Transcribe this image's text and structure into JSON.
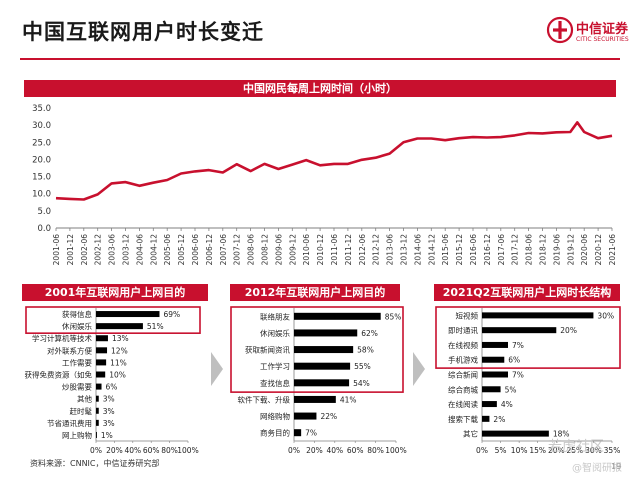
{
  "page": {
    "title": "中国互联网用户时长变迁",
    "source": "资料来源：CNNIC，中信证券研究部",
    "page_number": "19",
    "watermark": "若虎社区",
    "watermark_sub": "@智阅研报"
  },
  "logo": {
    "cn": "中信证券",
    "en": "CITIC SECURITIES",
    "icon": "citic-logo-icon"
  },
  "colors": {
    "accent": "#c8102e",
    "line": "#c8102e",
    "bar": "#000000",
    "arrow": "#bfbfbf"
  },
  "chart_data": [
    {
      "type": "line",
      "title": "中国网民每周上网时间（小时）",
      "x": [
        "2001-06",
        "2001-12",
        "2002-06",
        "2002-12",
        "2003-06",
        "2003-12",
        "2004-06",
        "2004-12",
        "2005-06",
        "2005-12",
        "2006-06",
        "2006-12",
        "2007-06",
        "2007-12",
        "2008-06",
        "2008-12",
        "2009-06",
        "2009-12",
        "2010-06",
        "2010-12",
        "2011-06",
        "2011-12",
        "2012-06",
        "2012-12",
        "2013-06",
        "2013-12",
        "2014-06",
        "2014-12",
        "2015-06",
        "2015-12",
        "2016-06",
        "2016-12",
        "2017-06",
        "2017-12",
        "2018-06",
        "2018-12",
        "2019-06",
        "2019-12",
        "2020-03",
        "2020-06",
        "2020-12",
        "2021-06"
      ],
      "ticks": [
        "2001-06",
        "2001-12",
        "2002-06",
        "2002-12",
        "2003-06",
        "2003-12",
        "2004-06",
        "2004-12",
        "2005-06",
        "2005-12",
        "2006-06",
        "2006-12",
        "2007-06",
        "2007-12",
        "2008-06",
        "2008-12",
        "2009-06",
        "2009-12",
        "2010-06",
        "2010-12",
        "2011-06",
        "2011-12",
        "2012-06",
        "2012-12",
        "2013-06",
        "2013-12",
        "2014-06",
        "2014-12",
        "2015-06",
        "2015-12",
        "2016-06",
        "2016-12",
        "2017-06",
        "2017-12",
        "2018-06",
        "2018-12",
        "2019-06",
        "2019-12",
        "2020-06",
        "2020-12",
        "2021-06"
      ],
      "values": [
        8.7,
        8.5,
        8.3,
        9.8,
        13.0,
        13.4,
        12.3,
        13.2,
        14.0,
        15.9,
        16.5,
        16.9,
        16.2,
        18.6,
        16.6,
        18.7,
        17.2,
        18.5,
        19.8,
        18.3,
        18.7,
        18.7,
        19.9,
        20.5,
        21.7,
        25.0,
        26.1,
        26.1,
        25.6,
        26.2,
        26.5,
        26.4,
        26.5,
        27.0,
        27.7,
        27.6,
        27.9,
        28.0,
        30.8,
        28.0,
        26.2,
        26.9
      ],
      "ylim": [
        0,
        35
      ],
      "yticks": [
        "0.0",
        "5.0",
        "10.0",
        "15.0",
        "20.0",
        "25.0",
        "30.0",
        "35.0"
      ],
      "grid": false
    },
    {
      "type": "bar",
      "orientation": "horizontal",
      "title": "2001年互联网用户上网目的",
      "categories": [
        "获得信息",
        "休闲娱乐",
        "学习计算机等技术",
        "对外联系方便",
        "工作需要",
        "获得免费资源（如免",
        "炒股需要",
        "其他",
        "赶时髦",
        "节省通讯费用",
        "网上购物"
      ],
      "values": [
        69,
        51,
        13,
        12,
        11,
        10,
        6,
        3,
        3,
        3,
        1
      ],
      "labels": [
        "69%",
        "51%",
        "13%",
        "12%",
        "11%",
        "10%",
        "6%",
        "3%",
        "3%",
        "3%",
        "1%"
      ],
      "xticks": [
        "0%",
        "20%",
        "40%",
        "60%",
        "80%",
        "100%"
      ],
      "xlim": [
        0,
        100
      ],
      "highlight": [
        "获得信息",
        "休闲娱乐"
      ]
    },
    {
      "type": "bar",
      "orientation": "horizontal",
      "title": "2012年互联网用户上网目的",
      "categories": [
        "联络朋友",
        "休闲娱乐",
        "获取新闻资讯",
        "工作学习",
        "查找信息",
        "软件下载、升级",
        "网络购物",
        "商务目的"
      ],
      "values": [
        85,
        62,
        58,
        55,
        54,
        41,
        22,
        7
      ],
      "labels": [
        "85%",
        "62%",
        "58%",
        "55%",
        "54%",
        "41%",
        "22%",
        "7%"
      ],
      "xticks": [
        "0%",
        "20%",
        "40%",
        "60%",
        "80%",
        "100%"
      ],
      "xlim": [
        0,
        100
      ],
      "highlight": [
        "联络朋友",
        "休闲娱乐",
        "获取新闻资讯",
        "工作学习",
        "查找信息"
      ]
    },
    {
      "type": "bar",
      "orientation": "horizontal",
      "title": "2021Q2互联网用户上网时长结构",
      "categories": [
        "短视频",
        "即时通讯",
        "在线视频",
        "手机游戏",
        "综合新闻",
        "综合商城",
        "在线阅读",
        "搜索下载",
        "其它"
      ],
      "values": [
        30,
        20,
        7,
        6,
        7,
        5,
        4,
        2,
        18
      ],
      "labels": [
        "30%",
        "20%",
        "7%",
        "6%",
        "7%",
        "5%",
        "4%",
        "2%",
        "18%"
      ],
      "xticks": [
        "0%",
        "5%",
        "10%",
        "15%",
        "20%",
        "25%",
        "30%",
        "35%"
      ],
      "xlim": [
        0,
        35
      ],
      "highlight": [
        "短视频",
        "即时通讯",
        "在线视频",
        "手机游戏"
      ]
    }
  ]
}
